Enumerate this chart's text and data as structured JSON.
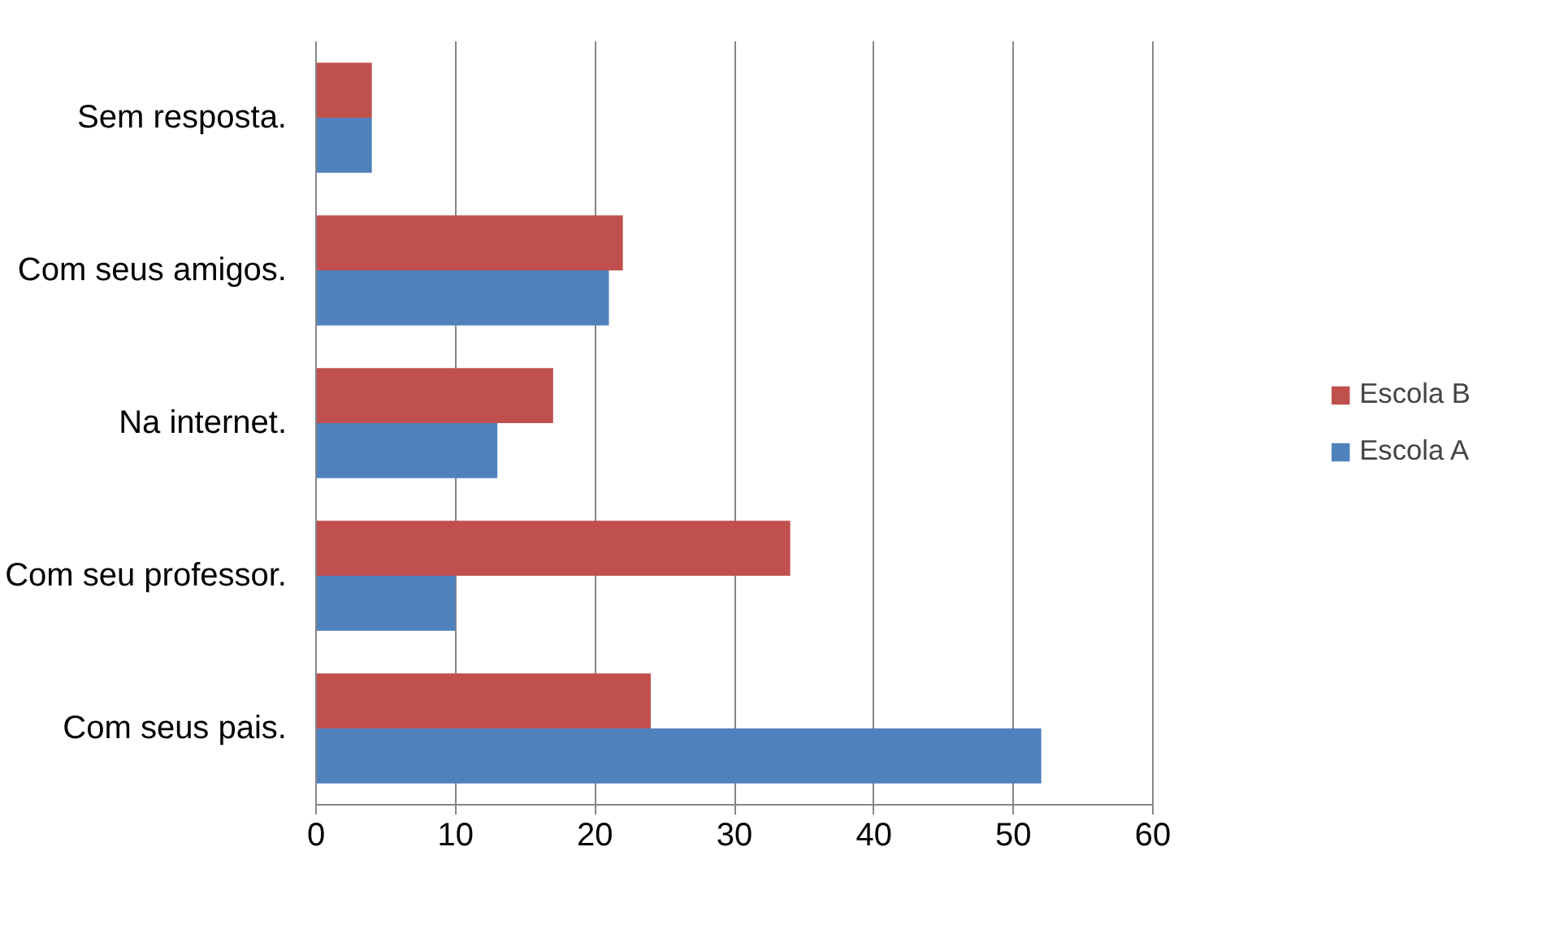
{
  "chart_data": {
    "type": "bar",
    "orientation": "horizontal",
    "categories": [
      "Sem resposta.",
      "Com seus amigos.",
      "Na internet.",
      "Com seu professor.",
      "Com seus pais."
    ],
    "series": [
      {
        "name": "Escola A",
        "color": "#4f81bd",
        "values": [
          4,
          21,
          13,
          10,
          52
        ]
      },
      {
        "name": "Escola B",
        "color": "#c0504d",
        "values": [
          4,
          22,
          17,
          34,
          24
        ]
      }
    ],
    "xlim": [
      0,
      60
    ],
    "xticks": [
      0,
      10,
      20,
      30,
      40,
      50,
      60
    ],
    "grid": "x",
    "legend": "right"
  }
}
